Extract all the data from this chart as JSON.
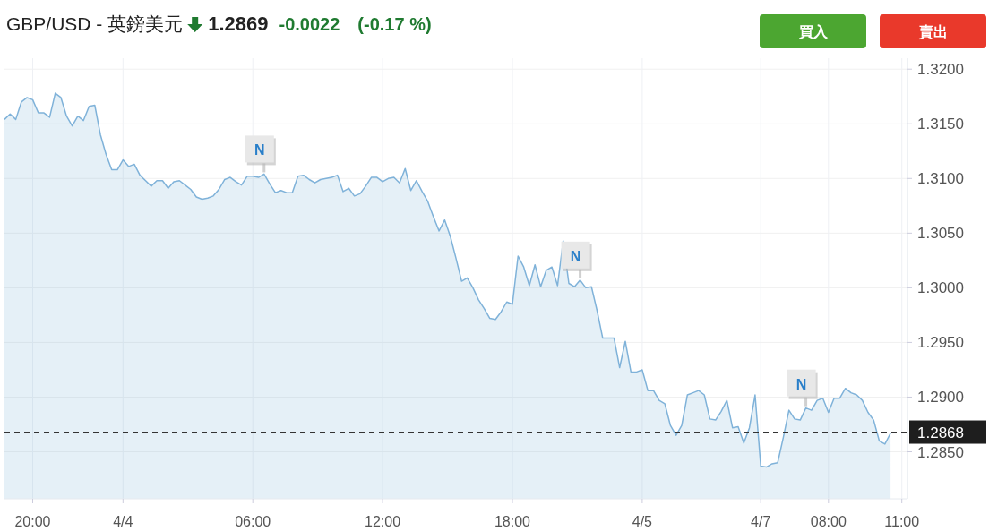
{
  "chart_data": {
    "type": "area",
    "title": "GBP/USD - 英鎊美元",
    "annotations": [
      "1.2869",
      "-0.0022",
      "(-0.17 %)",
      "買入",
      "賣出",
      {
        "text": "N",
        "y": 1.3104
      },
      {
        "text": "N",
        "y": 1.3007
      },
      {
        "text": "N",
        "y": 1.289
      }
    ],
    "categories": [
      null,
      null,
      null,
      null,
      null,
      "20:00",
      null,
      null,
      null,
      null,
      null,
      null,
      null,
      null,
      null,
      null,
      null,
      null,
      null,
      null,
      null,
      "4/4",
      null,
      null,
      null,
      null,
      null,
      null,
      null,
      null,
      null,
      null,
      null,
      null,
      null,
      null,
      null,
      null,
      null,
      null,
      null,
      null,
      null,
      null,
      "06:00",
      null,
      null,
      null,
      null,
      null,
      null,
      null,
      null,
      null,
      null,
      null,
      null,
      null,
      null,
      null,
      null,
      null,
      null,
      null,
      null,
      null,
      null,
      "12:00",
      null,
      null,
      null,
      null,
      null,
      null,
      null,
      null,
      null,
      null,
      null,
      null,
      null,
      null,
      null,
      null,
      null,
      null,
      null,
      null,
      null,
      null,
      "18:00",
      null,
      null,
      null,
      null,
      null,
      null,
      null,
      null,
      null,
      null,
      null,
      null,
      null,
      null,
      null,
      null,
      null,
      null,
      null,
      null,
      null,
      null,
      "4/5",
      null,
      null,
      null,
      null,
      null,
      null,
      null,
      null,
      null,
      null,
      null,
      null,
      null,
      null,
      null,
      null,
      null,
      null,
      null,
      null,
      "4/7",
      null,
      null,
      null,
      null,
      null,
      null,
      null,
      null,
      null,
      null,
      null,
      "08:00",
      null,
      null,
      null,
      null,
      null,
      null,
      null,
      null,
      null,
      null,
      null,
      null,
      "11:00"
    ],
    "ylim": [
      1.2807,
      1.321
    ],
    "yticks": [
      {
        "value": 1.285,
        "label": "1.2850"
      },
      {
        "value": 1.29,
        "label": "1.2900"
      },
      {
        "value": 1.295,
        "label": "1.2950"
      },
      {
        "value": 1.3,
        "label": "1.3000"
      },
      {
        "value": 1.305,
        "label": "1.3050"
      },
      {
        "value": 1.31,
        "label": "1.3100"
      },
      {
        "value": 1.315,
        "label": "1.3150"
      },
      {
        "value": 1.32,
        "label": "1.3200"
      }
    ],
    "grid": true,
    "ref_lines": [
      {
        "axis": "y",
        "value": 1.2868,
        "label": "1.2868",
        "color": "#333333",
        "line_style": "dashed"
      }
    ],
    "series": [
      {
        "color": "#7fb2d9",
        "values": [
          1.3154,
          1.3159,
          1.3154,
          1.317,
          1.3174,
          1.3172,
          1.316,
          1.316,
          1.3156,
          1.3178,
          1.3174,
          1.3157,
          1.3148,
          1.3157,
          1.3153,
          1.3166,
          1.3167,
          1.314,
          1.3122,
          1.3108,
          1.3108,
          1.3117,
          1.3111,
          1.3113,
          1.3103,
          1.3098,
          1.3093,
          1.3098,
          1.3098,
          1.3091,
          1.3097,
          1.3098,
          1.3094,
          1.309,
          1.3083,
          1.3081,
          1.3082,
          1.3084,
          1.309,
          1.3099,
          1.3101,
          1.3097,
          1.3094,
          1.3102,
          1.3102,
          1.3101,
          1.3104,
          1.3095,
          1.3087,
          1.3089,
          1.3087,
          1.3087,
          1.3102,
          1.3103,
          1.3099,
          1.3096,
          1.3099,
          1.31,
          1.3101,
          1.3103,
          1.3088,
          1.3091,
          1.3084,
          1.3086,
          1.3093,
          1.3101,
          1.3101,
          1.3097,
          1.31,
          1.3101,
          1.3096,
          1.3109,
          1.3089,
          1.3098,
          1.3088,
          1.3079,
          1.3065,
          1.3052,
          1.3062,
          1.3047,
          1.3027,
          1.3006,
          1.3009,
          1.3,
          1.2989,
          1.2981,
          1.2972,
          1.2971,
          1.2978,
          1.2987,
          1.2985,
          1.3029,
          1.3019,
          1.3002,
          1.3021,
          1.3001,
          1.3016,
          1.3019,
          1.3002,
          1.3043,
          1.3004,
          1.3001,
          1.3007,
          1.3,
          1.3001,
          1.2979,
          1.2954,
          1.2954,
          1.2954,
          1.2927,
          1.2951,
          1.2923,
          1.2923,
          1.2925,
          1.2906,
          1.2906,
          1.2897,
          1.2894,
          1.2874,
          1.2865,
          1.2874,
          1.2902,
          1.2904,
          1.2906,
          1.2902,
          1.288,
          1.2879,
          1.2887,
          1.2897,
          1.2872,
          1.2873,
          1.2858,
          1.2872,
          1.2902,
          1.2837,
          1.2836,
          1.2839,
          1.284,
          1.2863,
          1.2888,
          1.288,
          1.2879,
          1.289,
          1.2888,
          1.2897,
          1.2899,
          1.2886,
          1.2899,
          1.2899,
          1.2908,
          1.2904,
          1.2902,
          1.2897,
          1.2886,
          1.2879,
          1.286,
          1.2857,
          1.2867,
          null,
          null
        ]
      }
    ]
  }
}
